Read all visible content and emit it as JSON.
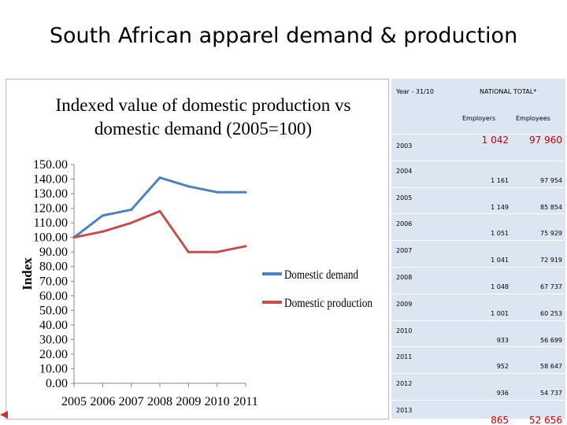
{
  "slide": {
    "title": "South African apparel demand & production"
  },
  "chart_data": {
    "type": "line",
    "title_line1": "Indexed value of domestic production vs",
    "title_line2": "domestic demand (2005=100)",
    "xlabel": "",
    "ylabel": "Index",
    "x": [
      "2005",
      "2006",
      "2007",
      "2008",
      "2009",
      "2010",
      "2011"
    ],
    "ylim": [
      0,
      150
    ],
    "yticks": [
      "0.00",
      "10.00",
      "20.00",
      "30.00",
      "40.00",
      "50.00",
      "60.00",
      "70.00",
      "80.00",
      "90.00",
      "100.00",
      "110.00",
      "120.00",
      "130.00",
      "140.00",
      "150.00"
    ],
    "series": [
      {
        "name": "Domestic demand",
        "color": "#4f81bd",
        "values": [
          100,
          115,
          119,
          141,
          135,
          131,
          131
        ]
      },
      {
        "name": "Domestic production",
        "color": "#c0504d",
        "values": [
          100,
          104,
          110,
          118,
          90,
          90,
          94
        ]
      }
    ],
    "legend": "right"
  },
  "table": {
    "year_header": "Year - 31/10",
    "group_header": "NATIONAL TOTAL*",
    "col_employers": "Employers",
    "col_employees": "Employees",
    "rows": [
      {
        "year": "2003",
        "employers": "1 042",
        "employees": "97 960"
      },
      {
        "year": "2004",
        "employers": "1 161",
        "employees": "97 954"
      },
      {
        "year": "2005",
        "employers": "1 149",
        "employees": "85 854"
      },
      {
        "year": "2006",
        "employers": "1 051",
        "employees": "75 929"
      },
      {
        "year": "2007",
        "employers": "1 041",
        "employees": "72 919"
      },
      {
        "year": "2008",
        "employers": "1 048",
        "employees": "67 737"
      },
      {
        "year": "2009",
        "employers": "1 001",
        "employees": "60 253"
      },
      {
        "year": "2010",
        "employers": "933",
        "employees": "56 699"
      },
      {
        "year": "2011",
        "employers": "952",
        "employees": "58 647"
      },
      {
        "year": "2012",
        "employers": "936",
        "employees": "54 737"
      },
      {
        "year": "2013",
        "employers": "865",
        "employees": "52 656"
      }
    ]
  }
}
